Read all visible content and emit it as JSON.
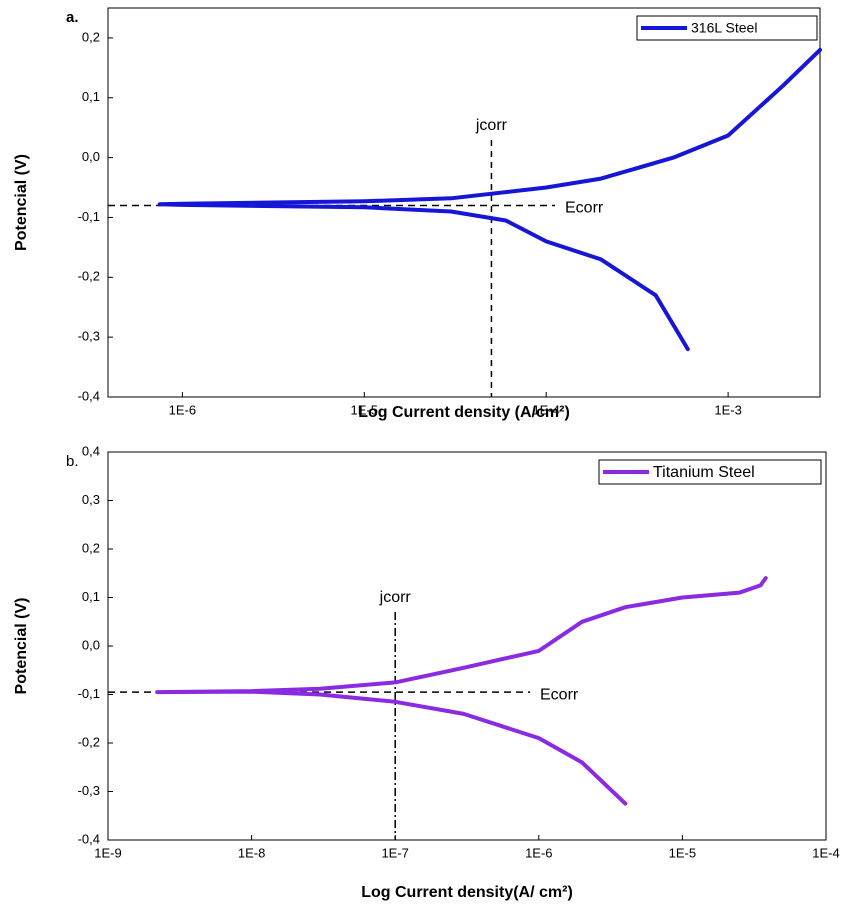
{
  "chart_data": [
    {
      "type": "line",
      "title": "a.",
      "x_label": "Log Current density (A/cm²)",
      "y_label": "Potencial (V)",
      "x_scale": "log",
      "xlim": [
        3.9e-07,
        0.0032
      ],
      "ylim": [
        -0.4,
        0.25
      ],
      "xticks": [
        {
          "value": 1e-06,
          "label": "1E-6"
        },
        {
          "value": 1e-05,
          "label": "1E-5"
        },
        {
          "value": 0.0001,
          "label": "1E-4"
        },
        {
          "value": 0.001,
          "label": "1E-3"
        }
      ],
      "yticks": [
        {
          "value": -0.4,
          "label": "-0,4"
        },
        {
          "value": -0.3,
          "label": "-0,3"
        },
        {
          "value": -0.2,
          "label": "-0,2"
        },
        {
          "value": -0.1,
          "label": "-0,1"
        },
        {
          "value": 0,
          "label": "0,0"
        },
        {
          "value": 0.1,
          "label": "0,1"
        },
        {
          "value": 0.2,
          "label": "0,2"
        }
      ],
      "legend": "upper right",
      "annotations": [
        {
          "text": "jcorr",
          "x": 5e-05
        },
        {
          "text": "Ecorr",
          "y": -0.08
        }
      ],
      "series": [
        {
          "name": "316L Steel",
          "color": "#1616d8",
          "x": [
            0.0006,
            0.0004,
            0.0002,
            0.0001,
            6e-05,
            3e-05,
            1e-05,
            1e-06,
            7.5e-07,
            1e-06,
            1e-05,
            3e-05,
            0.0001,
            0.0002,
            0.0005,
            0.001,
            0.002,
            0.0032
          ],
          "values": [
            -0.32,
            -0.23,
            -0.17,
            -0.14,
            -0.105,
            -0.09,
            -0.083,
            -0.079,
            -0.078,
            -0.077,
            -0.073,
            -0.068,
            -0.05,
            -0.035,
            0.0,
            0.037,
            0.12,
            0.18
          ]
        }
      ]
    },
    {
      "type": "line",
      "title": "b.",
      "x_label": "Log Current  density(A/ cm²)",
      "y_label": "Potencial (V)",
      "x_scale": "log",
      "xlim": [
        1e-09,
        0.0001
      ],
      "ylim": [
        -0.4,
        0.4
      ],
      "xticks": [
        {
          "value": 1e-09,
          "label": "1E-9"
        },
        {
          "value": 1e-08,
          "label": "1E-8"
        },
        {
          "value": 1e-07,
          "label": "1E-7"
        },
        {
          "value": 1e-06,
          "label": "1E-6"
        },
        {
          "value": 1e-05,
          "label": "1E-5"
        },
        {
          "value": 0.0001,
          "label": "1E-4"
        }
      ],
      "yticks": [
        {
          "value": -0.4,
          "label": "-0,4"
        },
        {
          "value": -0.3,
          "label": "-0,3"
        },
        {
          "value": -0.2,
          "label": "-0,2"
        },
        {
          "value": -0.1,
          "label": "-0,1"
        },
        {
          "value": 0,
          "label": "0,0"
        },
        {
          "value": 0.1,
          "label": "0,1"
        },
        {
          "value": 0.2,
          "label": "0,2"
        },
        {
          "value": 0.3,
          "label": "0,3"
        },
        {
          "value": 0.4,
          "label": "0,4"
        }
      ],
      "legend": "upper right",
      "annotations": [
        {
          "text": "jcorr",
          "x": 1e-07
        },
        {
          "text": "Ecorr",
          "y": -0.095
        }
      ],
      "series": [
        {
          "name": "Titanium Steel",
          "color": "#8a2be2",
          "x": [
            4e-06,
            2e-06,
            1e-06,
            3e-07,
            1e-07,
            3e-08,
            1e-08,
            2.2e-09,
            1e-08,
            3e-08,
            1e-07,
            3e-07,
            1e-06,
            2e-06,
            4e-06,
            1e-05,
            2.5e-05,
            3.5e-05,
            3.8e-05
          ],
          "values": [
            -0.325,
            -0.24,
            -0.19,
            -0.14,
            -0.115,
            -0.1,
            -0.094,
            -0.095,
            -0.093,
            -0.088,
            -0.075,
            -0.045,
            -0.01,
            0.05,
            0.08,
            0.1,
            0.11,
            0.125,
            0.14
          ]
        }
      ]
    }
  ]
}
